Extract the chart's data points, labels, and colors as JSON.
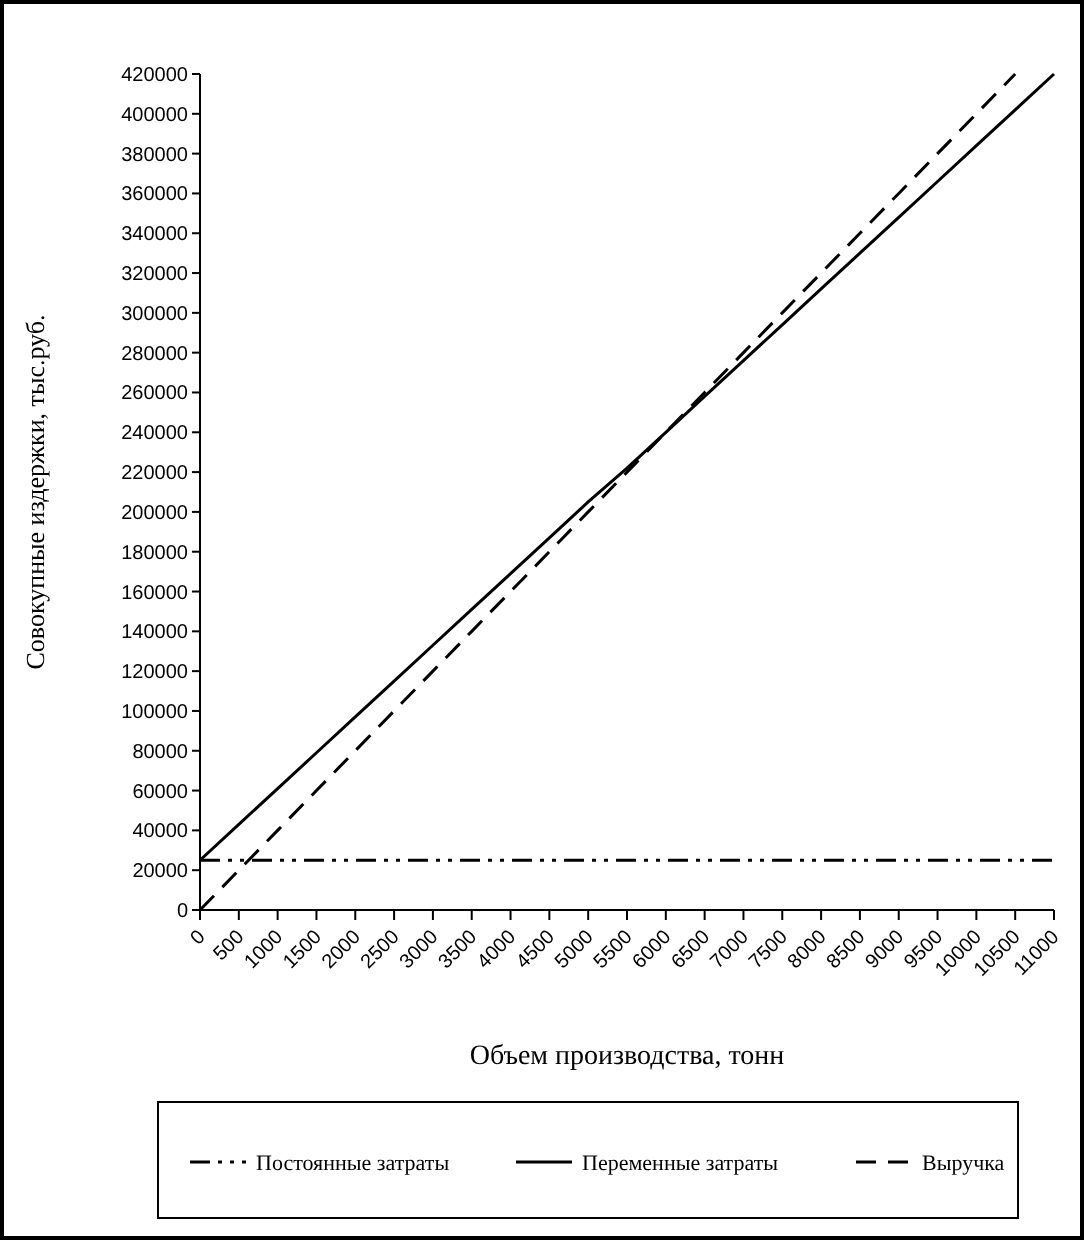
{
  "chart_data": {
    "type": "line",
    "xlabel": "Объем производства, тонн",
    "ylabel": "Совокупные издержки, тыс.руб.",
    "categories": [
      "0",
      "500",
      "1000",
      "1500",
      "2000",
      "2500",
      "3000",
      "3500",
      "4000",
      "4500",
      "5000",
      "5500",
      "6000",
      "6500",
      "7000",
      "7500",
      "8000",
      "8500",
      "9000",
      "9500",
      "10000",
      "10500",
      "11000"
    ],
    "ylim": [
      0,
      420000
    ],
    "yticks": [
      0,
      20000,
      40000,
      60000,
      80000,
      100000,
      120000,
      140000,
      160000,
      180000,
      200000,
      220000,
      240000,
      260000,
      280000,
      300000,
      320000,
      340000,
      360000,
      380000,
      400000,
      420000
    ],
    "grid": false,
    "legend": "bottom",
    "marker": "none",
    "series": [
      {
        "name": "Постоянные затраты",
        "color": "#000000",
        "line_style": "dashdotdot",
        "values": [
          25000,
          25000,
          25000,
          25000,
          25000,
          25000,
          25000,
          25000,
          25000,
          25000,
          25000,
          25000,
          25000,
          25000,
          25000,
          25000,
          25000,
          25000,
          25000,
          25000,
          25000,
          25000,
          25000
        ]
      },
      {
        "name": "Переменные затраты",
        "color": "#000000",
        "line_style": "solid",
        "values": [
          25000,
          43000,
          61000,
          79000,
          97000,
          115000,
          133000,
          151000,
          169000,
          187000,
          205000,
          222000,
          240000,
          258000,
          276000,
          294000,
          312000,
          330000,
          348000,
          366000,
          384000,
          402000,
          420000
        ]
      },
      {
        "name": "Выручка",
        "color": "#000000",
        "line_style": "dashed",
        "values": [
          0,
          20000,
          40000,
          60000,
          80000,
          100000,
          120000,
          140000,
          160000,
          180000,
          200000,
          220000,
          240000,
          260000,
          280000,
          300000,
          320000,
          340000,
          360000,
          380000,
          400000,
          420000,
          null
        ]
      }
    ]
  }
}
